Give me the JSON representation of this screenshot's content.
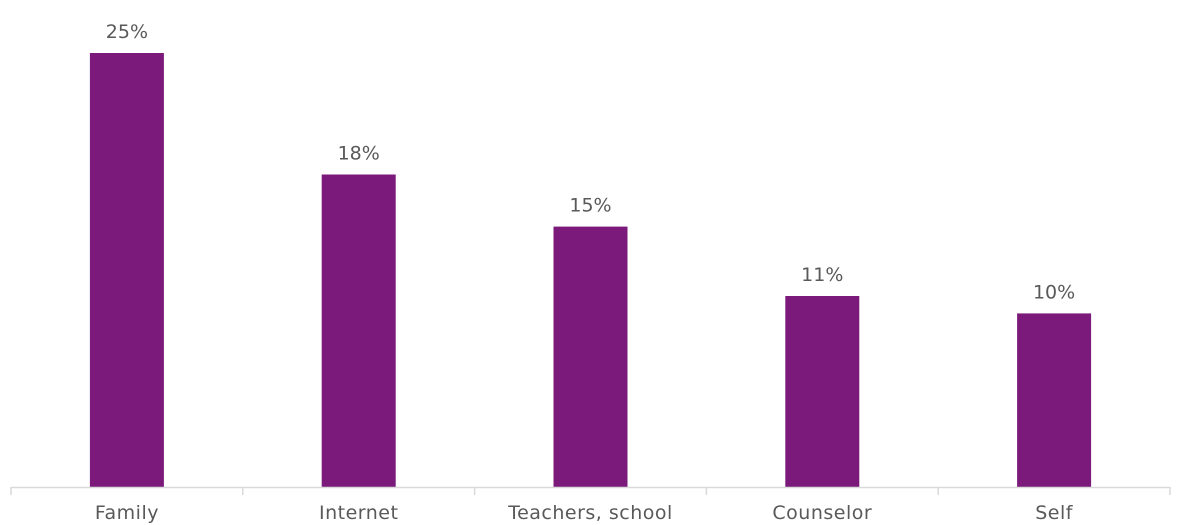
{
  "chart_data": {
    "type": "bar",
    "title": "",
    "xlabel": "",
    "ylabel": "",
    "categories": [
      "Family",
      "Internet",
      "Teachers, school",
      "Counselor",
      "Self"
    ],
    "values": [
      25,
      18,
      15,
      11,
      10
    ],
    "value_labels": [
      "25%",
      "18%",
      "15%",
      "11%",
      "10%"
    ],
    "unit": "%",
    "ylim": [
      0,
      25
    ],
    "grid": false,
    "legend": "none",
    "bar_color": "#7B1A7B",
    "axis_color": "#D9D9D9",
    "text_color": "#595959"
  }
}
